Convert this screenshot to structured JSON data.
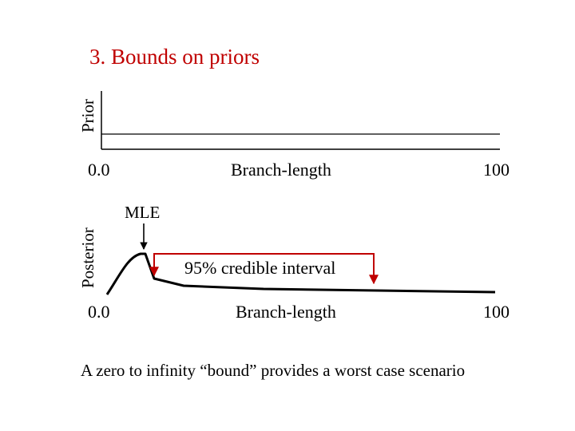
{
  "slide": {
    "title": "3. Bounds on priors",
    "footer": "A zero to infinity “bound” provides a worst case scenario"
  },
  "prior_panel": {
    "ylabel": "Prior",
    "xlabel": "Branch-length",
    "x_min_label": "0.0",
    "x_max_label": "100"
  },
  "posterior_panel": {
    "ylabel": "Posterior",
    "xlabel": "Branch-length",
    "x_min_label": "0.0",
    "x_max_label": "100",
    "mle_label": "MLE",
    "interval_label": "95% credible interval"
  },
  "colors": {
    "accent": "#c00000",
    "text": "#000000"
  }
}
